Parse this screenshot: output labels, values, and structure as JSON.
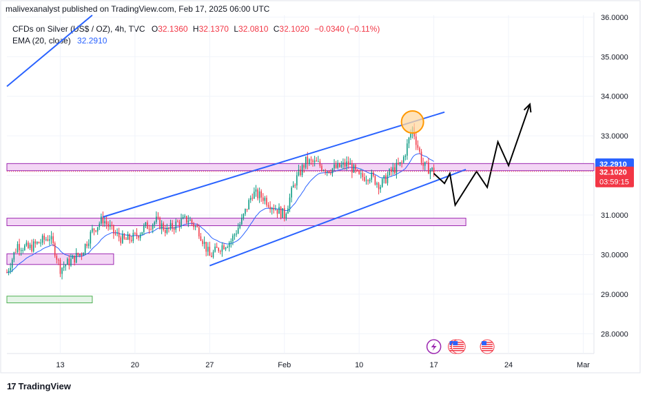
{
  "header": {
    "publish_line": "malivexanalyst published on TradingView.com, Feb 17, 2025 06:00 UTC"
  },
  "legend": {
    "symbol": "CFDs on Silver (US$ / OZ), 4h, TVC",
    "open_label": "O",
    "open": "32.1360",
    "high_label": "H",
    "high": "32.1370",
    "low_label": "L",
    "low": "32.0810",
    "close_label": "C",
    "close": "32.1020",
    "change": "−0.0340 (−0.11%)",
    "ema_label": "EMA (20, close)",
    "ema_value": "32.2910"
  },
  "footer": {
    "brand": "TradingView"
  },
  "colors": {
    "up": "#089981",
    "down": "#f23645",
    "trend": "#2962ff",
    "zone_fill": "#f3d6f5",
    "zone_stroke": "#9c27b0",
    "green_fill": "#e6f4e8",
    "green_stroke": "#4caf50",
    "circle_fill": "#ffd8a0",
    "circle_stroke": "#ff9800",
    "projection": "#000000"
  },
  "chart_data": {
    "type": "candlestick",
    "timeframe": "4h",
    "x_ticks": [
      "13",
      "20",
      "27",
      "Feb",
      "10",
      "17",
      "24",
      "Mar"
    ],
    "x_tick_dates": [
      "2025-01-13",
      "2025-01-20",
      "2025-01-27",
      "2025-02-03",
      "2025-02-10",
      "2025-02-17",
      "2025-02-24",
      "2025-03-03"
    ],
    "y_ticks": [
      "28.0000",
      "29.0000",
      "30.0000",
      "31.0000",
      "32.0000",
      "33.0000",
      "34.0000",
      "35.0000",
      "36.0000"
    ],
    "ylim": [
      27.5,
      36.05
    ],
    "xlim": [
      "2025-01-08",
      "2025-03-04"
    ],
    "price_labels": [
      {
        "value": "32.2910",
        "kind": "ema"
      },
      {
        "value": "32.1020",
        "kind": "last",
        "countdown": "03:59:15"
      }
    ],
    "close_path": [
      {
        "date": "2025-01-08",
        "price": 29.55
      },
      {
        "date": "2025-01-09",
        "price": 30.25
      },
      {
        "date": "2025-01-10",
        "price": 30.15
      },
      {
        "date": "2025-01-11",
        "price": 30.3
      },
      {
        "date": "2025-01-12",
        "price": 30.45
      },
      {
        "date": "2025-01-12.5",
        "price": 30.1
      },
      {
        "date": "2025-01-13",
        "price": 29.65
      },
      {
        "date": "2025-01-14",
        "price": 29.85
      },
      {
        "date": "2025-01-15",
        "price": 30.05
      },
      {
        "date": "2025-01-16",
        "price": 30.6
      },
      {
        "date": "2025-01-17",
        "price": 30.9
      },
      {
        "date": "2025-01-18",
        "price": 30.55
      },
      {
        "date": "2025-01-19",
        "price": 30.35
      },
      {
        "date": "2025-01-20",
        "price": 30.45
      },
      {
        "date": "2025-01-21",
        "price": 30.7
      },
      {
        "date": "2025-01-22",
        "price": 30.85
      },
      {
        "date": "2025-01-23",
        "price": 30.6
      },
      {
        "date": "2025-01-24",
        "price": 30.8
      },
      {
        "date": "2025-01-25",
        "price": 30.9
      },
      {
        "date": "2025-01-26",
        "price": 30.6
      },
      {
        "date": "2025-01-27",
        "price": 29.95
      },
      {
        "date": "2025-01-28",
        "price": 30.2
      },
      {
        "date": "2025-01-29",
        "price": 30.35
      },
      {
        "date": "2025-01-30",
        "price": 30.85
      },
      {
        "date": "2025-01-31",
        "price": 31.55
      },
      {
        "date": "2025-02-01",
        "price": 31.45
      },
      {
        "date": "2025-02-02",
        "price": 31.2
      },
      {
        "date": "2025-02-03",
        "price": 31.0
      },
      {
        "date": "2025-02-04",
        "price": 31.85
      },
      {
        "date": "2025-02-05",
        "price": 32.35
      },
      {
        "date": "2025-02-06",
        "price": 32.3
      },
      {
        "date": "2025-02-07",
        "price": 32.15
      },
      {
        "date": "2025-02-08",
        "price": 32.2
      },
      {
        "date": "2025-02-09",
        "price": 32.3
      },
      {
        "date": "2025-02-10",
        "price": 31.95
      },
      {
        "date": "2025-02-11",
        "price": 32.0
      },
      {
        "date": "2025-02-12",
        "price": 31.75
      },
      {
        "date": "2025-02-13",
        "price": 32.1
      },
      {
        "date": "2025-02-14",
        "price": 32.3
      },
      {
        "date": "2025-02-15",
        "price": 33.2
      },
      {
        "date": "2025-02-16",
        "price": 32.25
      },
      {
        "date": "2025-02-17",
        "price": 32.1
      }
    ],
    "trendlines": [
      {
        "name": "channel-upper",
        "from": {
          "date": "2025-01-17",
          "price": 30.95
        },
        "to": {
          "date": "2025-02-18",
          "price": 33.6
        }
      },
      {
        "name": "channel-lower",
        "from": {
          "date": "2025-01-27",
          "price": 29.72
        },
        "to": {
          "date": "2025-02-20",
          "price": 32.15
        }
      },
      {
        "name": "upper-left-line",
        "from": {
          "date": "2025-01-08",
          "price": 34.25
        },
        "to": {
          "date": "2025-01-16",
          "price": 36.05
        }
      }
    ],
    "zones": [
      {
        "name": "resistance-zone",
        "from": "2025-01-08",
        "to": "2025-03-04",
        "low": 32.12,
        "high": 32.3,
        "color": "purple"
      },
      {
        "name": "support-zone",
        "from": "2025-01-08",
        "to": "2025-02-20",
        "low": 30.73,
        "high": 30.92,
        "color": "purple"
      },
      {
        "name": "lower-zone",
        "from": "2025-01-08",
        "to": "2025-01-18",
        "low": 29.75,
        "high": 30.02,
        "color": "purple"
      },
      {
        "name": "green-zone",
        "from": "2025-01-08",
        "to": "2025-01-16",
        "low": 28.78,
        "high": 28.95,
        "color": "green"
      }
    ],
    "highlight_circle": {
      "date": "2025-02-15",
      "price": 33.35
    },
    "projection_path": [
      {
        "date": "2025-02-17",
        "price": 32.05
      },
      {
        "date": "2025-02-18",
        "price": 31.8
      },
      {
        "date": "2025-02-18.5",
        "price": 32.05
      },
      {
        "date": "2025-02-19",
        "price": 31.25
      },
      {
        "date": "2025-02-21",
        "price": 32.1
      },
      {
        "date": "2025-02-22",
        "price": 31.7
      },
      {
        "date": "2025-02-23",
        "price": 32.85
      },
      {
        "date": "2025-02-24",
        "price": 32.25
      },
      {
        "date": "2025-02-26",
        "price": 33.8
      }
    ],
    "event_markers": [
      {
        "date": "2025-02-17",
        "icon": "lightning-icon"
      },
      {
        "date": "2025-02-19",
        "icon": "us-flag-icon"
      },
      {
        "date": "2025-02-19.3",
        "icon": "us-flag-icon"
      },
      {
        "date": "2025-02-22",
        "icon": "us-flag-icon"
      }
    ]
  }
}
